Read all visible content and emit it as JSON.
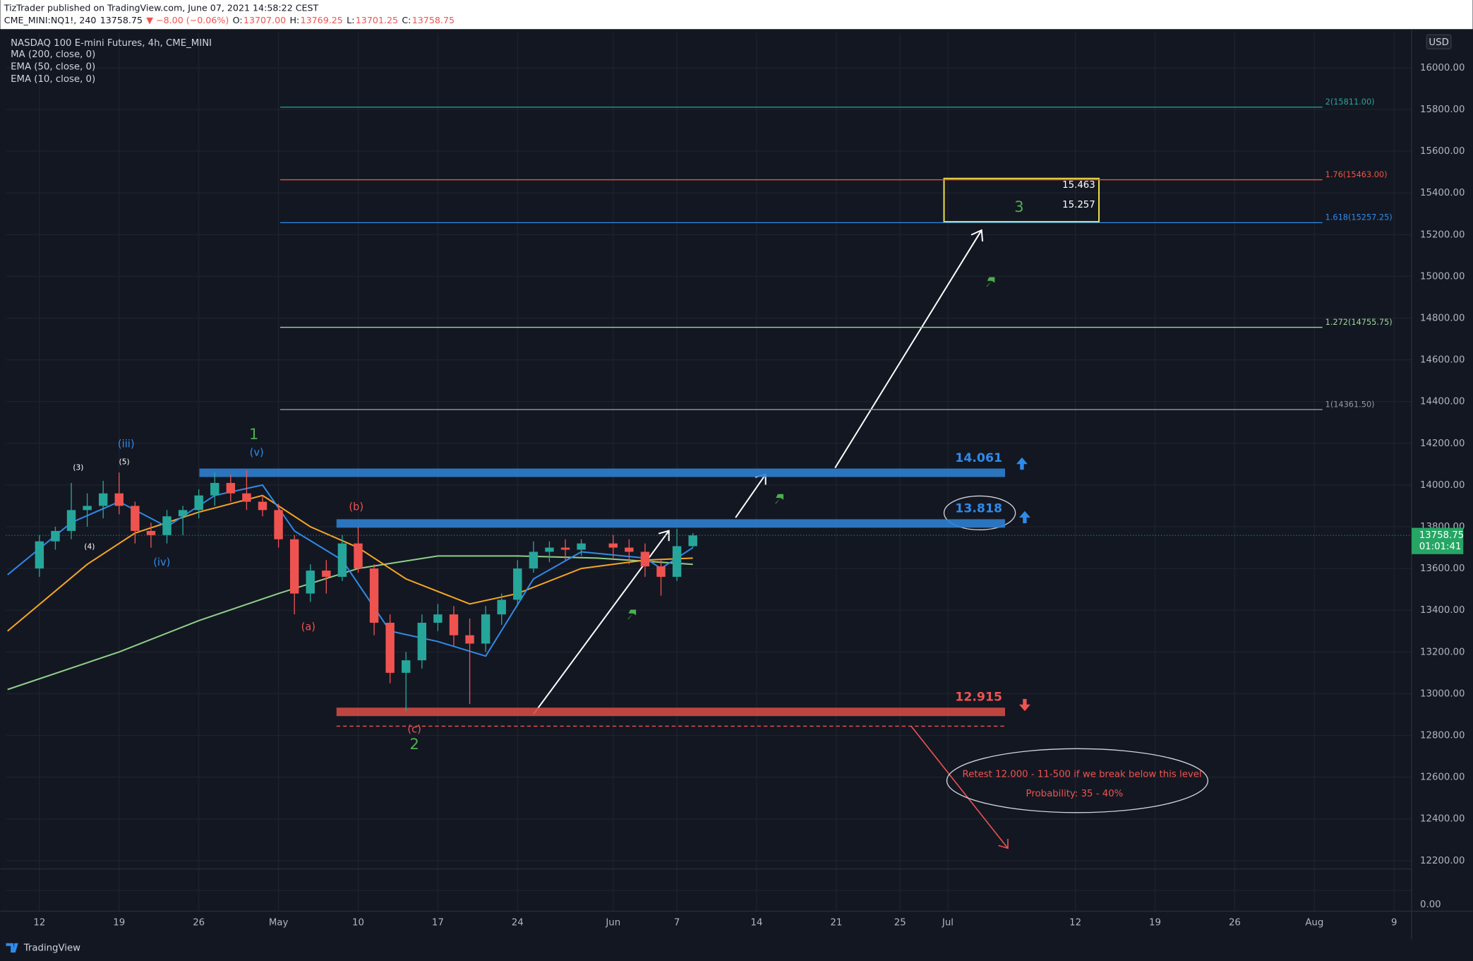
{
  "header": {
    "publisher": "TizTrader published on TradingView.com, June 07, 2021 14:58:22 CEST",
    "symbol": "CME_MINI:NQ1!, 240",
    "last": "13758.75",
    "change": "▼ −8.00 (−0.06%)",
    "ohlc": [
      {
        "label": "O:",
        "value": "13707.00"
      },
      {
        "label": "H:",
        "value": "13769.25"
      },
      {
        "label": "L:",
        "value": "13701.25"
      },
      {
        "label": "C:",
        "value": "13758.75"
      }
    ]
  },
  "chart_data": {
    "type": "candlestick",
    "title": "NASDAQ 100 E-mini Futures, 4h, CME_MINI",
    "currency": "USD",
    "countdown": "01:01:41",
    "up_color": "#26a69a",
    "down_color": "#ef5350",
    "x": [
      0,
      1,
      2,
      3,
      4,
      5,
      6,
      7,
      8,
      9,
      10,
      11,
      12,
      13,
      14,
      15,
      16,
      17,
      18,
      19,
      20,
      21,
      22,
      23,
      24,
      25,
      26,
      27,
      28,
      29,
      30,
      31,
      32,
      33,
      34,
      36,
      37,
      38,
      39,
      40,
      41
    ],
    "open": [
      13600,
      13730,
      13780,
      13880,
      13900,
      13960,
      13900,
      13780,
      13760,
      13850,
      13880,
      13950,
      14010,
      13960,
      13920,
      13880,
      13740,
      13480,
      13590,
      13560,
      13720,
      13600,
      13340,
      13100,
      13160,
      13340,
      13380,
      13280,
      13240,
      13380,
      13450,
      13600,
      13680,
      13700,
      13690,
      13720,
      13700,
      13680,
      13610,
      13560,
      13707
    ],
    "high": [
      13760,
      13800,
      14010,
      13960,
      14020,
      14060,
      13920,
      13820,
      13880,
      13900,
      13980,
      14060,
      14050,
      14070,
      13950,
      13910,
      13760,
      13620,
      13640,
      13760,
      13800,
      13620,
      13380,
      13200,
      13380,
      13430,
      13420,
      13360,
      13420,
      13480,
      13640,
      13730,
      13730,
      13740,
      13740,
      13760,
      13740,
      13720,
      13640,
      13790,
      13769.25
    ],
    "low": [
      13560,
      13690,
      13740,
      13800,
      13840,
      13860,
      13720,
      13700,
      13720,
      13760,
      13840,
      13900,
      13920,
      13880,
      13850,
      13700,
      13380,
      13440,
      13480,
      13540,
      13580,
      13280,
      13050,
      12915,
      13120,
      13300,
      13230,
      12950,
      13200,
      13330,
      13420,
      13580,
      13630,
      13640,
      13660,
      13650,
      13620,
      13560,
      13470,
      13540,
      13701.25
    ],
    "close": [
      13730,
      13780,
      13880,
      13900,
      13960,
      13900,
      13780,
      13760,
      13850,
      13880,
      13950,
      14010,
      13960,
      13920,
      13880,
      13740,
      13480,
      13590,
      13560,
      13720,
      13600,
      13340,
      13100,
      13160,
      13340,
      13380,
      13280,
      13240,
      13380,
      13450,
      13600,
      13680,
      13700,
      13690,
      13720,
      13700,
      13680,
      13610,
      13560,
      13707,
      13758.75
    ],
    "series": [
      {
        "name": "MA (200, close, 0)",
        "color": "#8fd08a",
        "x": [
          -2,
          5,
          10,
          15,
          20,
          25,
          30,
          35,
          41
        ],
        "values": [
          13020,
          13200,
          13350,
          13480,
          13600,
          13660,
          13660,
          13650,
          13620
        ]
      },
      {
        "name": "EMA (50, close, 0)",
        "color": "#f5a623",
        "x": [
          -2,
          3,
          6,
          10,
          14,
          17,
          20,
          23,
          27,
          30,
          34,
          38,
          41
        ],
        "values": [
          13300,
          13620,
          13770,
          13870,
          13950,
          13800,
          13700,
          13550,
          13430,
          13480,
          13600,
          13640,
          13650
        ]
      },
      {
        "name": "EMA (10, close, 0)",
        "color": "#2f8bea",
        "x": [
          -2,
          2,
          5,
          8,
          11,
          14,
          16,
          19,
          22,
          25,
          28,
          31,
          34,
          38,
          39,
          41
        ],
        "values": [
          13570,
          13820,
          13920,
          13800,
          13950,
          14000,
          13780,
          13640,
          13300,
          13250,
          13180,
          13550,
          13680,
          13650,
          13600,
          13700
        ]
      }
    ],
    "xlim": [
      -2.1,
      86.1
    ],
    "ylim": [
      12160,
      16167
    ],
    "xticks": [
      {
        "value": 0,
        "label": "12"
      },
      {
        "value": 5,
        "label": "19"
      },
      {
        "value": 10,
        "label": "26"
      },
      {
        "value": 15,
        "label": "May"
      },
      {
        "value": 20,
        "label": "10"
      },
      {
        "value": 25,
        "label": "17"
      },
      {
        "value": 30,
        "label": "24"
      },
      {
        "value": 36,
        "label": "Jun"
      },
      {
        "value": 40,
        "label": "7"
      },
      {
        "value": 45,
        "label": "14"
      },
      {
        "value": 50,
        "label": "21"
      },
      {
        "value": 54,
        "label": "25"
      },
      {
        "value": 57,
        "label": "Jul"
      },
      {
        "value": 65,
        "label": "12"
      },
      {
        "value": 70,
        "label": "19"
      },
      {
        "value": 75,
        "label": "26"
      },
      {
        "value": 80,
        "label": "Aug"
      },
      {
        "value": 85,
        "label": "9"
      }
    ],
    "yticks": [
      {
        "value": 12200,
        "label": "12200.00"
      },
      {
        "value": 12400,
        "label": "12400.00"
      },
      {
        "value": 12600,
        "label": "12600.00"
      },
      {
        "value": 12800,
        "label": "12800.00"
      },
      {
        "value": 13000,
        "label": "13000.00"
      },
      {
        "value": 13200,
        "label": "13200.00"
      },
      {
        "value": 13400,
        "label": "13400.00"
      },
      {
        "value": 13600,
        "label": "13600.00"
      },
      {
        "value": 13800,
        "label": "13800.00"
      },
      {
        "value": 14000,
        "label": "14000.00"
      },
      {
        "value": 14200,
        "label": "14200.00"
      },
      {
        "value": 14400,
        "label": "14400.00"
      },
      {
        "value": 14600,
        "label": "14600.00"
      },
      {
        "value": 14800,
        "label": "14800.00"
      },
      {
        "value": 15000,
        "label": "15000.00"
      },
      {
        "value": 15200,
        "label": "15200.00"
      },
      {
        "value": 15400,
        "label": "15400.00"
      },
      {
        "value": 15600,
        "label": "15600.00"
      },
      {
        "value": 15800,
        "label": "15800.00"
      },
      {
        "value": 16000,
        "label": "16000.00"
      }
    ],
    "volume_tick": {
      "value": 0,
      "label": "0.00"
    },
    "fib_levels": [
      {
        "value": 15811,
        "label": "2(15811.00)",
        "color": "#26a69a"
      },
      {
        "value": 15463,
        "label": "1.76(15463.00)",
        "color": "#f2543d"
      },
      {
        "value": 15257.25,
        "label": "1.618(15257.25)",
        "color": "#2f8bea"
      },
      {
        "value": 14755.75,
        "label": "1.272(14755.75)",
        "color": "#9ed69a"
      },
      {
        "value": 14361.5,
        "label": "1(14361.50)",
        "color": "#9598a1"
      }
    ],
    "zones": [
      {
        "value": 14061,
        "label": "14.061",
        "color": "#2f7fd0"
      },
      {
        "value": 13818,
        "label": "13.818",
        "color": "#2f7fd0"
      },
      {
        "value": 12915,
        "label": "12.915",
        "color": "#d24a43"
      }
    ],
    "target_box": {
      "labels": [
        "15.463",
        "15.257"
      ],
      "wave": "3"
    },
    "wave_labels": [
      {
        "text": "(3)",
        "color": "#ffffff"
      },
      {
        "text": "(5)",
        "color": "#ffffff"
      },
      {
        "text": "(4)",
        "color": "#ffffff"
      },
      {
        "text": "(iii)",
        "color": "#2f8bea"
      },
      {
        "text": "(iv)",
        "color": "#2f8bea"
      },
      {
        "text": "(v)",
        "color": "#2f8bea"
      },
      {
        "text": "1",
        "color": "#4caf50"
      },
      {
        "text": "(b)",
        "color": "#ef5350"
      },
      {
        "text": "(a)",
        "color": "#ef5350"
      },
      {
        "text": "(c)",
        "color": "#ef5350"
      },
      {
        "text": "2",
        "color": "#4caf50"
      }
    ],
    "note": [
      "Retest 12.000 - 11-500 if we break below this level",
      "Probability: 35 - 40%"
    ]
  },
  "footer": "TradingView"
}
